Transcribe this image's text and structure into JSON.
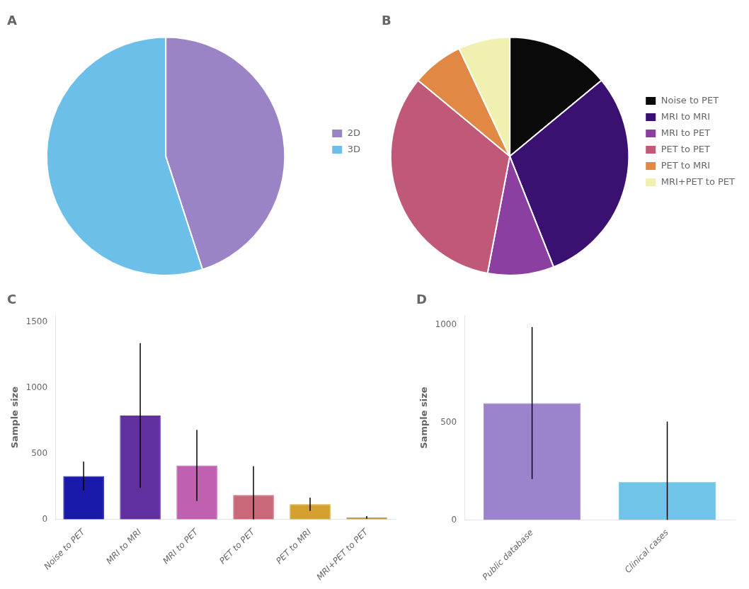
{
  "chart_data": [
    {
      "type": "pie",
      "title": "A",
      "categories": [
        "2D",
        "3D"
      ],
      "values": [
        45,
        55
      ],
      "colors": [
        "#9b84c6",
        "#6bbfe8"
      ],
      "legend": "right"
    },
    {
      "type": "pie",
      "title": "B",
      "categories": [
        "Noise to PET",
        "MRI to MRI",
        "MRI to PET",
        "PET to PET",
        "PET to MRI",
        "MRI+PET to PET"
      ],
      "values": [
        14,
        30,
        9,
        33,
        7,
        7
      ],
      "colors": [
        "#0a0a0a",
        "#3a1070",
        "#8b3fa0",
        "#c05878",
        "#e08844",
        "#f0f0b0"
      ],
      "legend": "right"
    },
    {
      "type": "bar",
      "title": "C",
      "categories": [
        "Noise to PET",
        "MRI to MRI",
        "MRI to PET",
        "PET to PET",
        "PET to MRI",
        "MRI+PET to PET"
      ],
      "values": [
        330,
        790,
        410,
        185,
        115,
        15
      ],
      "errors_pos": [
        110,
        550,
        270,
        220,
        50,
        10
      ],
      "errors_neg": [
        110,
        550,
        270,
        185,
        50,
        10
      ],
      "colors": [
        "#1a1aaa",
        "#6030a0",
        "#c060b0",
        "#c86878",
        "#d4a030",
        "#c0a040"
      ],
      "ylabel": "Sample size",
      "ylim": [
        0,
        1550
      ],
      "yticks": [
        0,
        500,
        1000,
        1500
      ],
      "grid": false
    },
    {
      "type": "bar",
      "title": "D",
      "categories": [
        "Public database",
        "Clinical cases"
      ],
      "values": [
        600,
        195
      ],
      "errors_pos": [
        390,
        310
      ],
      "errors_neg": [
        390,
        195
      ],
      "colors": [
        "#9b84cc",
        "#70c4e8"
      ],
      "ylabel": "Sample size",
      "ylim": [
        0,
        1050
      ],
      "yticks": [
        0,
        500,
        1000
      ],
      "grid": false
    }
  ]
}
